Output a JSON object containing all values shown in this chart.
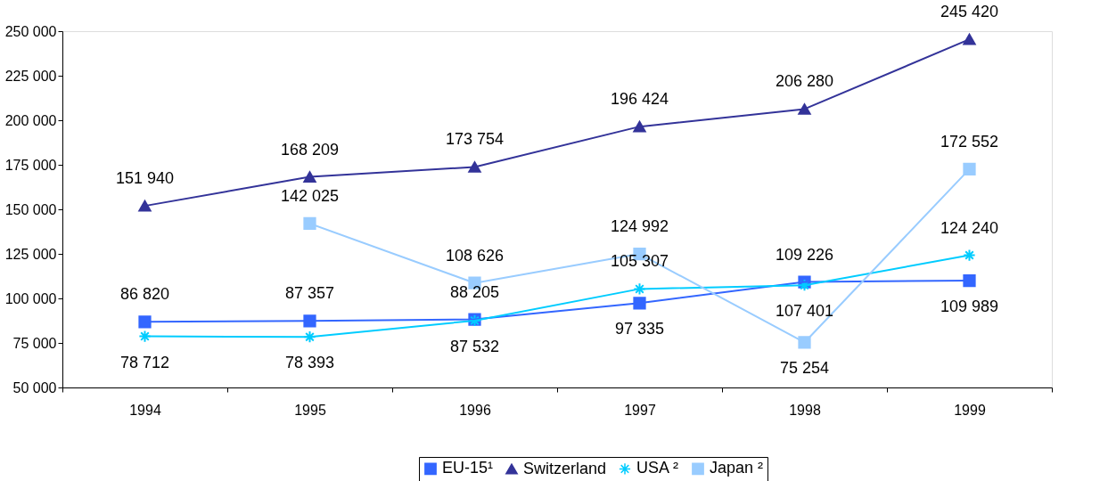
{
  "chart_data": {
    "type": "line",
    "categories": [
      "1994",
      "1995",
      "1996",
      "1997",
      "1998",
      "1999"
    ],
    "series": [
      {
        "name": "EU-15¹",
        "color": "#3366ff",
        "marker": "square",
        "values": [
          86820,
          87357,
          88205,
          97335,
          109226,
          109989
        ],
        "value_labels": [
          "86 820",
          "87 357",
          "88 205",
          "97 335",
          "109 226",
          "109 989"
        ]
      },
      {
        "name": "Switzerland",
        "color": "#333399",
        "marker": "triangle",
        "values": [
          151940,
          168209,
          173754,
          196424,
          206280,
          245420
        ],
        "value_labels": [
          "151 940",
          "168 209",
          "173 754",
          "196 424",
          "206 280",
          "245 420"
        ]
      },
      {
        "name": "USA ²",
        "color": "#00ccff",
        "marker": "cross",
        "values": [
          78712,
          78393,
          87532,
          105307,
          107401,
          124240
        ],
        "value_labels": [
          "78 712",
          "78 393",
          "87 532",
          "105 307",
          "107 401",
          "124 240"
        ]
      },
      {
        "name": "Japan ²",
        "color": "#99ccff",
        "marker": "square",
        "values": [
          null,
          142025,
          108626,
          124992,
          75254,
          172552
        ],
        "value_labels": [
          null,
          "142 025",
          "108 626",
          "124 992",
          "75 254",
          "172 552"
        ]
      }
    ],
    "ylim": [
      50000,
      250000
    ],
    "yticks": [
      {
        "value": 50000,
        "label": "50 000"
      },
      {
        "value": 75000,
        "label": "75 000"
      },
      {
        "value": 100000,
        "label": "100 000"
      },
      {
        "value": 125000,
        "label": "125 000"
      },
      {
        "value": 150000,
        "label": "150 000"
      },
      {
        "value": 175000,
        "label": "175 000"
      },
      {
        "value": 200000,
        "label": "200 000"
      },
      {
        "value": 225000,
        "label": "225 000"
      },
      {
        "value": 250000,
        "label": "250 000"
      }
    ],
    "grid": false,
    "legend": "bottom",
    "line_style": "solid"
  }
}
